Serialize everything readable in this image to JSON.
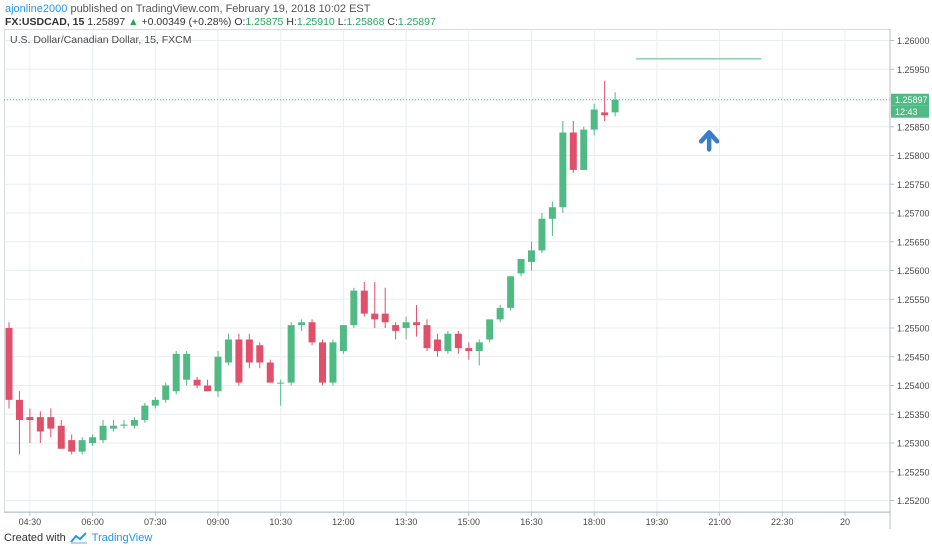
{
  "header": {
    "author": "ajonline2000",
    "published_text": " published on TradingView.com, February 19, 2018 10:02 EST",
    "symbol": "FX:USDCAD, 15",
    "last": "1.25897",
    "change_arrow": "▲",
    "change": "+0.00349 (+0.28%)",
    "o_label": "O:",
    "o_value": "1.25875",
    "h_label": "H:",
    "h_value": "1.25910",
    "l_label": "L:",
    "l_value": "1.25868",
    "c_label": "C:",
    "c_value": "1.25897"
  },
  "footer": {
    "created_with": "Created with",
    "brand": "TradingView"
  },
  "colors": {
    "up": "#4fba84",
    "down": "#e0506a",
    "grid": "#e9eef2",
    "price_line": "#4fba84",
    "arrow": "#3a7fc4",
    "axis_text": "#4a4a4a"
  },
  "chart_data": {
    "type": "candlestick",
    "title": "U.S. Dollar/Canadian Dollar, 15, FXCM",
    "ylim": [
      1.2518,
      1.2602
    ],
    "y_ticks": [
      "1.26000",
      "1.25950",
      "1.25900",
      "1.25850",
      "1.25800",
      "1.25750",
      "1.25700",
      "1.25650",
      "1.25600",
      "1.25550",
      "1.25500",
      "1.25450",
      "1.25400",
      "1.25350",
      "1.25300",
      "1.25250",
      "1.25200"
    ],
    "x_ticks": [
      "04:30",
      "06:00",
      "07:30",
      "09:00",
      "10:30",
      "12:00",
      "13:30",
      "15:00",
      "16:30",
      "18:00",
      "19:30",
      "21:00",
      "22:30",
      "20"
    ],
    "last_price_label": "1.25897",
    "countdown_label": "12:43",
    "last_price": 1.25897,
    "horizontal_line": {
      "price": 1.25968,
      "from_candle": 60,
      "to_candle": 72
    },
    "annotation": {
      "type": "arrow-up",
      "candle": 67,
      "price": 1.25835
    },
    "candles": [
      {
        "o": 1.255,
        "h": 1.2551,
        "l": 1.2536,
        "c": 1.25375
      },
      {
        "o": 1.25375,
        "h": 1.2539,
        "l": 1.2528,
        "c": 1.2534
      },
      {
        "o": 1.25345,
        "h": 1.2536,
        "l": 1.253,
        "c": 1.2534
      },
      {
        "o": 1.25345,
        "h": 1.25355,
        "l": 1.253,
        "c": 1.2532
      },
      {
        "o": 1.25345,
        "h": 1.2536,
        "l": 1.2531,
        "c": 1.25325
      },
      {
        "o": 1.2533,
        "h": 1.2534,
        "l": 1.2529,
        "c": 1.2529
      },
      {
        "o": 1.25305,
        "h": 1.25315,
        "l": 1.2528,
        "c": 1.25285
      },
      {
        "o": 1.25285,
        "h": 1.2531,
        "l": 1.2528,
        "c": 1.25305
      },
      {
        "o": 1.253,
        "h": 1.25315,
        "l": 1.25295,
        "c": 1.2531
      },
      {
        "o": 1.25305,
        "h": 1.2534,
        "l": 1.253,
        "c": 1.2533
      },
      {
        "o": 1.25325,
        "h": 1.2534,
        "l": 1.2532,
        "c": 1.2533
      },
      {
        "o": 1.2533,
        "h": 1.2534,
        "l": 1.25325,
        "c": 1.25332
      },
      {
        "o": 1.2533,
        "h": 1.25345,
        "l": 1.25325,
        "c": 1.2534
      },
      {
        "o": 1.2534,
        "h": 1.2537,
        "l": 1.25335,
        "c": 1.25365
      },
      {
        "o": 1.25365,
        "h": 1.2538,
        "l": 1.2536,
        "c": 1.25375
      },
      {
        "o": 1.25375,
        "h": 1.25405,
        "l": 1.2537,
        "c": 1.254
      },
      {
        "o": 1.2539,
        "h": 1.2546,
        "l": 1.25385,
        "c": 1.25455
      },
      {
        "o": 1.2541,
        "h": 1.2546,
        "l": 1.254,
        "c": 1.25455
      },
      {
        "o": 1.2541,
        "h": 1.25415,
        "l": 1.25395,
        "c": 1.254
      },
      {
        "o": 1.254,
        "h": 1.2541,
        "l": 1.2539,
        "c": 1.2539
      },
      {
        "o": 1.2539,
        "h": 1.2546,
        "l": 1.2538,
        "c": 1.2545
      },
      {
        "o": 1.2544,
        "h": 1.2549,
        "l": 1.25435,
        "c": 1.2548
      },
      {
        "o": 1.2548,
        "h": 1.2549,
        "l": 1.254,
        "c": 1.25405
      },
      {
        "o": 1.2548,
        "h": 1.2549,
        "l": 1.2543,
        "c": 1.2544
      },
      {
        "o": 1.2547,
        "h": 1.25475,
        "l": 1.2543,
        "c": 1.2544
      },
      {
        "o": 1.2544,
        "h": 1.25445,
        "l": 1.25405,
        "c": 1.25405
      },
      {
        "o": 1.25405,
        "h": 1.2541,
        "l": 1.25365,
        "c": 1.25405
      },
      {
        "o": 1.25405,
        "h": 1.2551,
        "l": 1.254,
        "c": 1.25505
      },
      {
        "o": 1.25505,
        "h": 1.25515,
        "l": 1.25495,
        "c": 1.2551
      },
      {
        "o": 1.2551,
        "h": 1.25515,
        "l": 1.2547,
        "c": 1.25475
      },
      {
        "o": 1.25475,
        "h": 1.2548,
        "l": 1.254,
        "c": 1.25405
      },
      {
        "o": 1.25405,
        "h": 1.2548,
        "l": 1.254,
        "c": 1.25475
      },
      {
        "o": 1.2546,
        "h": 1.25505,
        "l": 1.25455,
        "c": 1.25505
      },
      {
        "o": 1.25505,
        "h": 1.2557,
        "l": 1.255,
        "c": 1.25565
      },
      {
        "o": 1.25565,
        "h": 1.2558,
        "l": 1.2552,
        "c": 1.25525
      },
      {
        "o": 1.25525,
        "h": 1.2558,
        "l": 1.255,
        "c": 1.25515
      },
      {
        "o": 1.25525,
        "h": 1.2557,
        "l": 1.255,
        "c": 1.2551
      },
      {
        "o": 1.25505,
        "h": 1.2551,
        "l": 1.2548,
        "c": 1.25495
      },
      {
        "o": 1.255,
        "h": 1.2552,
        "l": 1.2548,
        "c": 1.2551
      },
      {
        "o": 1.2551,
        "h": 1.2554,
        "l": 1.25485,
        "c": 1.25505
      },
      {
        "o": 1.25505,
        "h": 1.25515,
        "l": 1.2546,
        "c": 1.25465
      },
      {
        "o": 1.2548,
        "h": 1.2549,
        "l": 1.2545,
        "c": 1.2546
      },
      {
        "o": 1.2546,
        "h": 1.25495,
        "l": 1.25455,
        "c": 1.2549
      },
      {
        "o": 1.2549,
        "h": 1.25495,
        "l": 1.25455,
        "c": 1.25465
      },
      {
        "o": 1.25465,
        "h": 1.25475,
        "l": 1.25445,
        "c": 1.2546
      },
      {
        "o": 1.2546,
        "h": 1.2548,
        "l": 1.25435,
        "c": 1.25475
      },
      {
        "o": 1.2548,
        "h": 1.25515,
        "l": 1.25475,
        "c": 1.25515
      },
      {
        "o": 1.25515,
        "h": 1.2554,
        "l": 1.2551,
        "c": 1.25535
      },
      {
        "o": 1.25535,
        "h": 1.2559,
        "l": 1.2553,
        "c": 1.2559
      },
      {
        "o": 1.25595,
        "h": 1.2562,
        "l": 1.2559,
        "c": 1.2562
      },
      {
        "o": 1.25615,
        "h": 1.2565,
        "l": 1.256,
        "c": 1.25635
      },
      {
        "o": 1.25635,
        "h": 1.257,
        "l": 1.2563,
        "c": 1.2569
      },
      {
        "o": 1.2569,
        "h": 1.2572,
        "l": 1.2566,
        "c": 1.2571
      },
      {
        "o": 1.2571,
        "h": 1.2586,
        "l": 1.257,
        "c": 1.2584
      },
      {
        "o": 1.2584,
        "h": 1.2586,
        "l": 1.2577,
        "c": 1.25775
      },
      {
        "o": 1.25775,
        "h": 1.2585,
        "l": 1.25775,
        "c": 1.25845
      },
      {
        "o": 1.25845,
        "h": 1.2589,
        "l": 1.25835,
        "c": 1.2588
      },
      {
        "o": 1.25875,
        "h": 1.2593,
        "l": 1.2586,
        "c": 1.2587
      },
      {
        "o": 1.25875,
        "h": 1.2591,
        "l": 1.25868,
        "c": 1.25897
      }
    ]
  }
}
